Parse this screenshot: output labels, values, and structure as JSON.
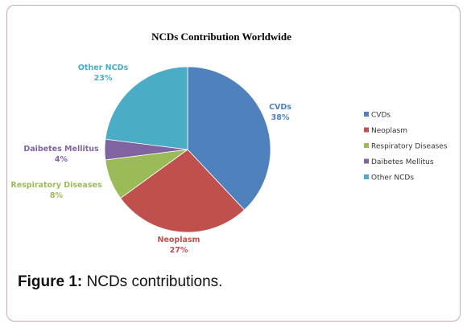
{
  "chart_data": {
    "type": "pie",
    "title": "NCDs Contribution  Worldwide",
    "categories": [
      "CVDs",
      "Neoplasm",
      "Respiratory Diseases",
      "Daibetes Mellitus",
      "Other NCDs"
    ],
    "values": [
      38,
      27,
      8,
      4,
      23
    ],
    "labels": [
      "CVDs\n38%",
      "Neoplasm\n27%",
      "Respiratory Diseases\n8%",
      "Daibetes Mellitus\n4%",
      "Other NCDs\n23%"
    ],
    "data_labels": [
      "38%",
      "27%",
      "8%",
      "4%",
      "23%"
    ],
    "colors": [
      "#4f81bd",
      "#c0504d",
      "#9bbb59",
      "#8064a2",
      "#4bacc6"
    ],
    "label_colors": [
      "#4f81bd",
      "#c0504d",
      "#9bbb59",
      "#8064a2",
      "#4bacc6"
    ],
    "legend": "right"
  },
  "caption": {
    "figure_label": "Figure 1:",
    "text": " NCDs contributions."
  }
}
